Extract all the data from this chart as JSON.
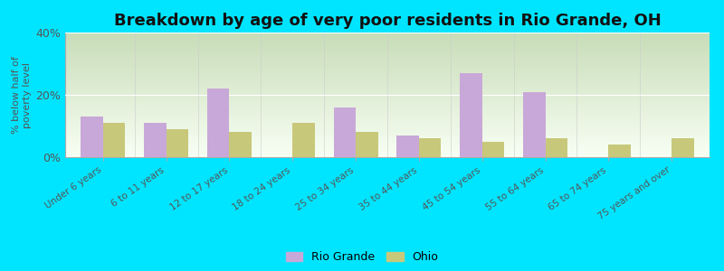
{
  "title": "Breakdown by age of very poor residents in Rio Grande, OH",
  "categories": [
    "Under 6 years",
    "6 to 11 years",
    "12 to 17 years",
    "18 to 24 years",
    "25 to 34 years",
    "35 to 44 years",
    "45 to 54 years",
    "55 to 64 years",
    "65 to 74 years",
    "75 years and over"
  ],
  "rio_grande": [
    13,
    11,
    22,
    0,
    16,
    7,
    27,
    21,
    0,
    0
  ],
  "ohio": [
    11,
    9,
    8,
    11,
    8,
    6,
    5,
    6,
    4,
    6
  ],
  "rio_grande_color": "#c8a8d8",
  "ohio_color": "#c8c87a",
  "bg_outer": "#00e5ff",
  "grad_top": "#c8ddb8",
  "grad_bottom": "#f8fff4",
  "ylim": [
    0,
    40
  ],
  "yticks": [
    0,
    20,
    40
  ],
  "ylabel": "% below half of\npoverty level",
  "bar_width": 0.35,
  "legend_rio": "Rio Grande",
  "legend_ohio": "Ohio",
  "title_fontsize": 13,
  "tick_labelsize": 7.5,
  "ylabel_fontsize": 8
}
